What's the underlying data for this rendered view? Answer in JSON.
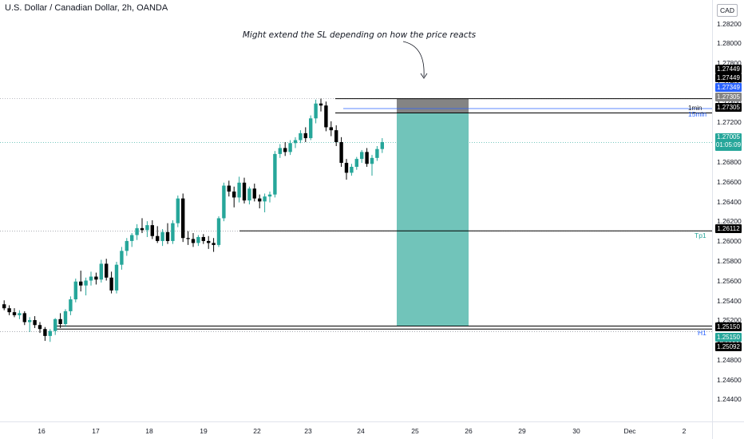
{
  "header": {
    "title": "U.S. Dollar / Canadian Dollar, 2h, OANDA",
    "currency_button": "CAD"
  },
  "annotation": "Might extend the SL depending on how the price reacts",
  "level_labels": {
    "tp1": "Tp1",
    "h1": "H1",
    "fifteen_min": "15min",
    "label_1min": "1min"
  },
  "price_tags": {
    "t1": "1.27449",
    "t2": "1.27449",
    "t3": "1.27349",
    "t4": "1.27305",
    "t5": "1.27305",
    "current_price": "1.27005",
    "countdown": "01:05:09",
    "tp1": "1.26112",
    "h1a": "1.25150",
    "h1b": "1.25150",
    "low": "1.25092"
  },
  "colors": {
    "up": "#26a69a",
    "down": "#000000",
    "tp_zone": "#71c4ba",
    "sl_zone": "#848484",
    "blue_line": "#2962ff"
  },
  "chart_data": {
    "type": "candlestick",
    "title": "U.S. Dollar / Canadian Dollar, 2h, OANDA",
    "y_axis_ticks": [
      "1.28200",
      "1.28000",
      "1.27800",
      "1.27600",
      "1.27400",
      "1.27200",
      "1.27000",
      "1.26800",
      "1.26600",
      "1.26400",
      "1.26200",
      "1.26000",
      "1.25800",
      "1.25600",
      "1.25400",
      "1.25200",
      "1.25000",
      "1.24800",
      "1.24600",
      "1.24400"
    ],
    "x_axis_ticks": [
      "16",
      "17",
      "18",
      "19",
      "22",
      "23",
      "24",
      "25",
      "26",
      "29",
      "30",
      "Dec",
      "2"
    ],
    "ylim": [
      1.2425,
      1.2835
    ],
    "horizontal_levels": [
      1.27449,
      1.27305,
      1.26112,
      1.2515,
      1.25092
    ],
    "position": {
      "entry": 1.27305,
      "stop_loss": 1.27449,
      "target": 1.2515
    },
    "candles": [
      [
        1.2537,
        1.2541,
        1.2531,
        1.2533
      ],
      [
        1.2533,
        1.2536,
        1.2526,
        1.2529
      ],
      [
        1.2529,
        1.2533,
        1.2524,
        1.2526
      ],
      [
        1.2526,
        1.2531,
        1.2522,
        1.2528
      ],
      [
        1.2528,
        1.253,
        1.2516,
        1.2519
      ],
      [
        1.2519,
        1.2524,
        1.2509,
        1.2521
      ],
      [
        1.2521,
        1.2525,
        1.2513,
        1.2516
      ],
      [
        1.2516,
        1.2519,
        1.2508,
        1.2512
      ],
      [
        1.2512,
        1.2514,
        1.25,
        1.2505
      ],
      [
        1.2505,
        1.2512,
        1.2499,
        1.251
      ],
      [
        1.251,
        1.2523,
        1.2506,
        1.2522
      ],
      [
        1.2522,
        1.2528,
        1.2513,
        1.2517
      ],
      [
        1.2517,
        1.2532,
        1.2514,
        1.253
      ],
      [
        1.253,
        1.2545,
        1.2526,
        1.2542
      ],
      [
        1.2542,
        1.2563,
        1.2539,
        1.256
      ],
      [
        1.256,
        1.2571,
        1.255,
        1.2556
      ],
      [
        1.2556,
        1.2564,
        1.2546,
        1.2561
      ],
      [
        1.2561,
        1.257,
        1.2556,
        1.2565
      ],
      [
        1.2565,
        1.2569,
        1.2557,
        1.2562
      ],
      [
        1.2562,
        1.2582,
        1.2559,
        1.2578
      ],
      [
        1.2578,
        1.2583,
        1.2561,
        1.2564
      ],
      [
        1.2564,
        1.257,
        1.2548,
        1.2551
      ],
      [
        1.2551,
        1.258,
        1.2548,
        1.2577
      ],
      [
        1.2577,
        1.2595,
        1.2572,
        1.2591
      ],
      [
        1.2591,
        1.2604,
        1.2586,
        1.2601
      ],
      [
        1.2601,
        1.2609,
        1.2595,
        1.2607
      ],
      [
        1.2607,
        1.2618,
        1.2602,
        1.2614
      ],
      [
        1.2614,
        1.2624,
        1.2609,
        1.2612
      ],
      [
        1.2612,
        1.2621,
        1.2605,
        1.2617
      ],
      [
        1.2617,
        1.2622,
        1.2603,
        1.2606
      ],
      [
        1.2606,
        1.2616,
        1.2599,
        1.2601
      ],
      [
        1.2601,
        1.2613,
        1.2596,
        1.261
      ],
      [
        1.261,
        1.2619,
        1.2598,
        1.2601
      ],
      [
        1.2601,
        1.2622,
        1.2598,
        1.2619
      ],
      [
        1.2619,
        1.2647,
        1.2615,
        1.2644
      ],
      [
        1.2644,
        1.2649,
        1.26,
        1.2604
      ],
      [
        1.2604,
        1.2611,
        1.2597,
        1.2603
      ],
      [
        1.2603,
        1.2609,
        1.2595,
        1.2599
      ],
      [
        1.2599,
        1.2607,
        1.2596,
        1.2605
      ],
      [
        1.2605,
        1.2608,
        1.2598,
        1.2601
      ],
      [
        1.2601,
        1.2606,
        1.2593,
        1.2599
      ],
      [
        1.2599,
        1.2604,
        1.259,
        1.2597
      ],
      [
        1.2597,
        1.2626,
        1.2595,
        1.2624
      ],
      [
        1.2624,
        1.266,
        1.2621,
        1.2657
      ],
      [
        1.2657,
        1.2662,
        1.2646,
        1.2651
      ],
      [
        1.2651,
        1.2656,
        1.2635,
        1.2645
      ],
      [
        1.2645,
        1.2666,
        1.264,
        1.266
      ],
      [
        1.266,
        1.2665,
        1.2639,
        1.2642
      ],
      [
        1.2642,
        1.2656,
        1.2638,
        1.2654
      ],
      [
        1.2654,
        1.2659,
        1.2641,
        1.2644
      ],
      [
        1.2644,
        1.2648,
        1.2634,
        1.2641
      ],
      [
        1.2641,
        1.2649,
        1.263,
        1.2646
      ],
      [
        1.2646,
        1.2651,
        1.264,
        1.2648
      ],
      [
        1.2648,
        1.2692,
        1.2645,
        1.2689
      ],
      [
        1.2689,
        1.2699,
        1.2685,
        1.2695
      ],
      [
        1.2695,
        1.2701,
        1.2687,
        1.2691
      ],
      [
        1.2691,
        1.2703,
        1.2688,
        1.27
      ],
      [
        1.27,
        1.2706,
        1.2695,
        1.2703
      ],
      [
        1.2703,
        1.2713,
        1.27,
        1.271
      ],
      [
        1.271,
        1.2716,
        1.2701,
        1.2705
      ],
      [
        1.2705,
        1.2728,
        1.2703,
        1.2725
      ],
      [
        1.2725,
        1.2744,
        1.272,
        1.274
      ],
      [
        1.274,
        1.2745,
        1.2732,
        1.2738
      ],
      [
        1.2738,
        1.2742,
        1.2712,
        1.2716
      ],
      [
        1.2716,
        1.2722,
        1.2707,
        1.2713
      ],
      [
        1.2713,
        1.2718,
        1.2697,
        1.2701
      ],
      [
        1.2701,
        1.2706,
        1.2676,
        1.268
      ],
      [
        1.268,
        1.2684,
        1.2663,
        1.267
      ],
      [
        1.267,
        1.2679,
        1.2667,
        1.2676
      ],
      [
        1.2676,
        1.2686,
        1.2673,
        1.2684
      ],
      [
        1.2684,
        1.2693,
        1.268,
        1.2691
      ],
      [
        1.2691,
        1.2695,
        1.2676,
        1.2679
      ],
      [
        1.2679,
        1.2688,
        1.2667,
        1.2685
      ],
      [
        1.2685,
        1.2697,
        1.2682,
        1.2694
      ],
      [
        1.2694,
        1.2705,
        1.269,
        1.2701
      ]
    ]
  }
}
